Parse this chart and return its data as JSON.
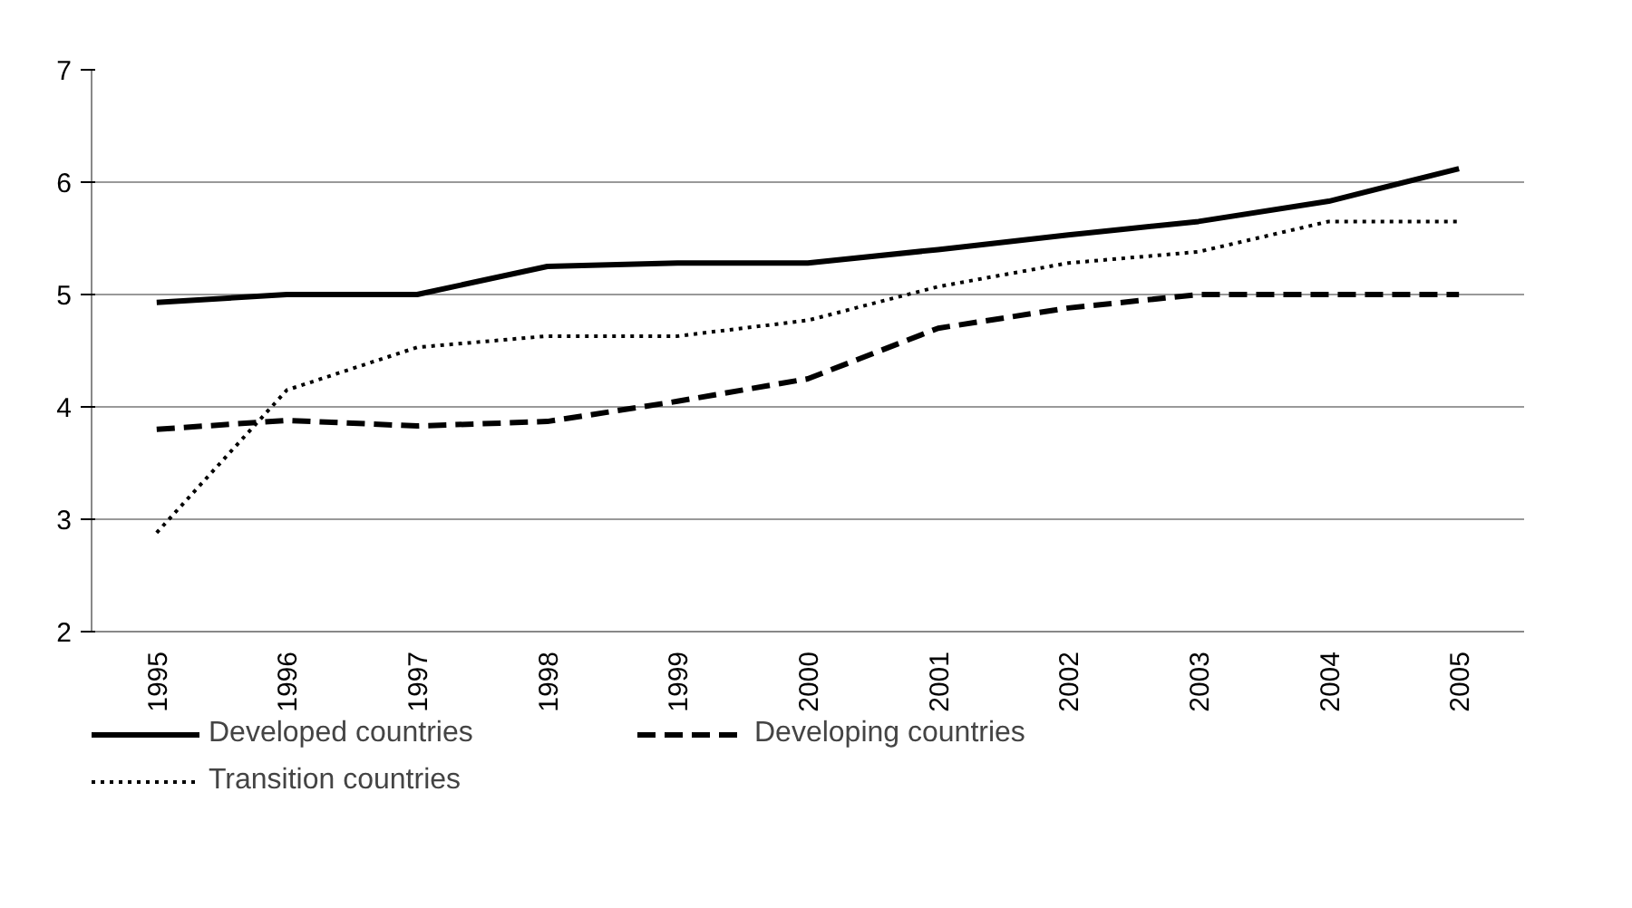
{
  "chart_data": {
    "type": "line",
    "categories": [
      "1995",
      "1996",
      "1997",
      "1998",
      "1999",
      "2000",
      "2001",
      "2002",
      "2003",
      "2004",
      "2005"
    ],
    "series": [
      {
        "name": "Developed countries",
        "color": "#000000",
        "line_style": "solid",
        "values": [
          4.93,
          5.0,
          5.0,
          5.25,
          5.28,
          5.28,
          5.4,
          5.53,
          5.65,
          5.83,
          6.12
        ]
      },
      {
        "name": "Developing countries",
        "color": "#000000",
        "line_style": "dashed",
        "values": [
          3.8,
          3.88,
          3.83,
          3.87,
          4.05,
          4.25,
          4.7,
          4.88,
          5.0,
          5.0,
          5.0
        ]
      },
      {
        "name": "Transition countries",
        "color": "#000000",
        "line_style": "dotted",
        "values": [
          2.88,
          4.15,
          4.53,
          4.63,
          4.63,
          4.77,
          5.07,
          5.28,
          5.38,
          5.65,
          5.65
        ]
      }
    ],
    "ylim": [
      2,
      7
    ],
    "yticks": [
      2,
      3,
      4,
      5,
      6,
      7
    ],
    "grid": "y",
    "legend": "bottom",
    "marker": "none"
  }
}
